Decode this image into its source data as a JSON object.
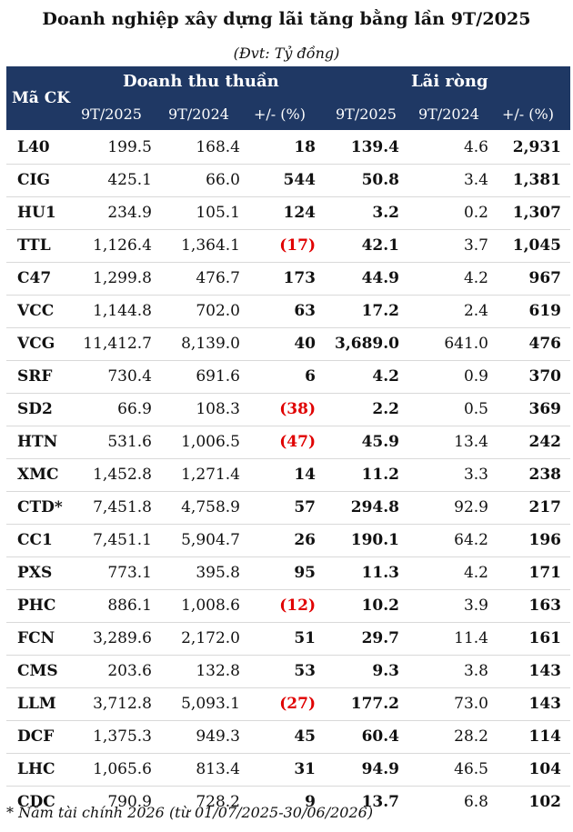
{
  "title": "Doanh nghiệp xây dựng lãi tăng bằng lần 9T/2025",
  "unit_note": "(Đvt: Tỷ đồng)",
  "header": {
    "ticker": "Mã CK",
    "revenue_group": "Doanh thu thuần",
    "profit_group": "Lãi ròng",
    "rev_2025": "9T/2025",
    "rev_2024": "9T/2024",
    "rev_chg": "+/- (%)",
    "np_2025": "9T/2025",
    "np_2024": "9T/2024",
    "np_chg": "+/- (%)"
  },
  "rows": [
    {
      "ck": "L40",
      "rev25": "199.5",
      "rev24": "168.4",
      "revchg": "18",
      "neg": false,
      "np25": "139.4",
      "np24": "4.6",
      "npchg": "2,931"
    },
    {
      "ck": "CIG",
      "rev25": "425.1",
      "rev24": "66.0",
      "revchg": "544",
      "neg": false,
      "np25": "50.8",
      "np24": "3.4",
      "npchg": "1,381"
    },
    {
      "ck": "HU1",
      "rev25": "234.9",
      "rev24": "105.1",
      "revchg": "124",
      "neg": false,
      "np25": "3.2",
      "np24": "0.2",
      "npchg": "1,307"
    },
    {
      "ck": "TTL",
      "rev25": "1,126.4",
      "rev24": "1,364.1",
      "revchg": "(17)",
      "neg": true,
      "np25": "42.1",
      "np24": "3.7",
      "npchg": "1,045"
    },
    {
      "ck": "C47",
      "rev25": "1,299.8",
      "rev24": "476.7",
      "revchg": "173",
      "neg": false,
      "np25": "44.9",
      "np24": "4.2",
      "npchg": "967"
    },
    {
      "ck": "VCC",
      "rev25": "1,144.8",
      "rev24": "702.0",
      "revchg": "63",
      "neg": false,
      "np25": "17.2",
      "np24": "2.4",
      "npchg": "619"
    },
    {
      "ck": "VCG",
      "rev25": "11,412.7",
      "rev24": "8,139.0",
      "revchg": "40",
      "neg": false,
      "np25": "3,689.0",
      "np24": "641.0",
      "npchg": "476"
    },
    {
      "ck": "SRF",
      "rev25": "730.4",
      "rev24": "691.6",
      "revchg": "6",
      "neg": false,
      "np25": "4.2",
      "np24": "0.9",
      "npchg": "370"
    },
    {
      "ck": "SD2",
      "rev25": "66.9",
      "rev24": "108.3",
      "revchg": "(38)",
      "neg": true,
      "np25": "2.2",
      "np24": "0.5",
      "npchg": "369"
    },
    {
      "ck": "HTN",
      "rev25": "531.6",
      "rev24": "1,006.5",
      "revchg": "(47)",
      "neg": true,
      "np25": "45.9",
      "np24": "13.4",
      "npchg": "242"
    },
    {
      "ck": "XMC",
      "rev25": "1,452.8",
      "rev24": "1,271.4",
      "revchg": "14",
      "neg": false,
      "np25": "11.2",
      "np24": "3.3",
      "npchg": "238"
    },
    {
      "ck": "CTD*",
      "rev25": "7,451.8",
      "rev24": "4,758.9",
      "revchg": "57",
      "neg": false,
      "np25": "294.8",
      "np24": "92.9",
      "npchg": "217"
    },
    {
      "ck": "CC1",
      "rev25": "7,451.1",
      "rev24": "5,904.7",
      "revchg": "26",
      "neg": false,
      "np25": "190.1",
      "np24": "64.2",
      "npchg": "196"
    },
    {
      "ck": "PXS",
      "rev25": "773.1",
      "rev24": "395.8",
      "revchg": "95",
      "neg": false,
      "np25": "11.3",
      "np24": "4.2",
      "npchg": "171"
    },
    {
      "ck": "PHC",
      "rev25": "886.1",
      "rev24": "1,008.6",
      "revchg": "(12)",
      "neg": true,
      "np25": "10.2",
      "np24": "3.9",
      "npchg": "163"
    },
    {
      "ck": "FCN",
      "rev25": "3,289.6",
      "rev24": "2,172.0",
      "revchg": "51",
      "neg": false,
      "np25": "29.7",
      "np24": "11.4",
      "npchg": "161"
    },
    {
      "ck": "CMS",
      "rev25": "203.6",
      "rev24": "132.8",
      "revchg": "53",
      "neg": false,
      "np25": "9.3",
      "np24": "3.8",
      "npchg": "143"
    },
    {
      "ck": "LLM",
      "rev25": "3,712.8",
      "rev24": "5,093.1",
      "revchg": "(27)",
      "neg": true,
      "np25": "177.2",
      "np24": "73.0",
      "npchg": "143"
    },
    {
      "ck": "DCF",
      "rev25": "1,375.3",
      "rev24": "949.3",
      "revchg": "45",
      "neg": false,
      "np25": "60.4",
      "np24": "28.2",
      "npchg": "114"
    },
    {
      "ck": "LHC",
      "rev25": "1,065.6",
      "rev24": "813.4",
      "revchg": "31",
      "neg": false,
      "np25": "94.9",
      "np24": "46.5",
      "npchg": "104"
    },
    {
      "ck": "CDC",
      "rev25": "790.9",
      "rev24": "728.2",
      "revchg": "9",
      "neg": false,
      "np25": "13.7",
      "np24": "6.8",
      "npchg": "102"
    }
  ],
  "footnote": "* Năm tài chính 2026 (từ 01/07/2025-30/06/2026)",
  "colors": {
    "header_bg": "#1f3864",
    "negative": "#e00000"
  }
}
